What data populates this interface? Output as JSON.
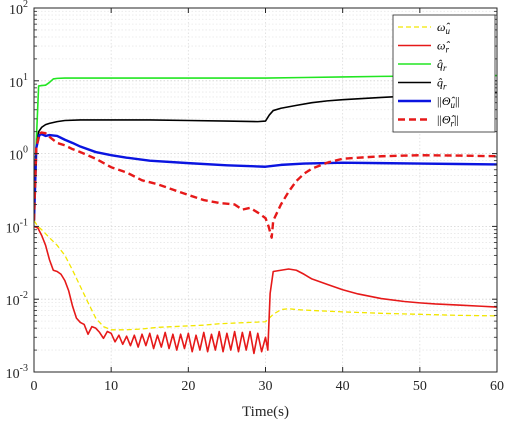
{
  "chart_data": {
    "type": "line",
    "xlabel": "Time(s)",
    "ylabel": "",
    "xlim": [
      0,
      60
    ],
    "ylim": [
      0.001,
      100
    ],
    "yscale": "log",
    "grid": true,
    "legend_placement": "top-right",
    "x_ticks": [
      0,
      10,
      20,
      30,
      40,
      50,
      60
    ],
    "x_tick_labels": [
      "0",
      "10",
      "20",
      "30",
      "40",
      "50",
      "60"
    ],
    "y_ticks": [
      0.001,
      0.01,
      0.1,
      1,
      10,
      100
    ],
    "y_tick_labels": [
      {
        "base": "10",
        "exp": "-3"
      },
      {
        "base": "10",
        "exp": "-2"
      },
      {
        "base": "10",
        "exp": "-1"
      },
      {
        "base": "10",
        "exp": "0"
      },
      {
        "base": "10",
        "exp": "1"
      },
      {
        "base": "10",
        "exp": "2"
      }
    ],
    "series": [
      {
        "name": "ω̂u",
        "legend_main": "ω̂",
        "legend_sub": "u",
        "color": "#f2e600",
        "dash": "dashed",
        "width": 1.3,
        "x": [
          0,
          0.5,
          1,
          2,
          3,
          4,
          5,
          6,
          7,
          8,
          9,
          10,
          12,
          14,
          16,
          18,
          20,
          22,
          24,
          26,
          28,
          30,
          31,
          32,
          33,
          34,
          36,
          40,
          45,
          50,
          55,
          60
        ],
        "y": [
          0.12,
          0.1,
          0.09,
          0.07,
          0.055,
          0.04,
          0.025,
          0.015,
          0.009,
          0.0055,
          0.0042,
          0.0038,
          0.0038,
          0.0039,
          0.0041,
          0.0042,
          0.0043,
          0.0044,
          0.0046,
          0.0047,
          0.0048,
          0.0049,
          0.0062,
          0.0072,
          0.0074,
          0.0072,
          0.007,
          0.0067,
          0.0064,
          0.0062,
          0.006,
          0.0059
        ]
      },
      {
        "name": "ω̂r",
        "legend_main": "ω̂",
        "legend_sub": "r",
        "color": "#e61919",
        "dash": "solid",
        "width": 1.6,
        "x": [
          0,
          0.5,
          1,
          1.5,
          2,
          2.5,
          3,
          3.5,
          4,
          4.5,
          5,
          5.5,
          6,
          6.5,
          7,
          7.5,
          8,
          8.5,
          9,
          9.5,
          10,
          10.5,
          11,
          11.5,
          12,
          12.5,
          13,
          13.5,
          14,
          14.5,
          15,
          15.5,
          16,
          16.5,
          17,
          17.5,
          18,
          18.5,
          19,
          19.5,
          20,
          20.5,
          21,
          21.5,
          22,
          22.5,
          23,
          23.5,
          24,
          24.5,
          25,
          25.5,
          26,
          26.5,
          27,
          27.5,
          28,
          28.5,
          29,
          29.5,
          30,
          30.3,
          30.6,
          31,
          32,
          33,
          34,
          35,
          36,
          38,
          40,
          42,
          45,
          48,
          50,
          52,
          55,
          58,
          60
        ],
        "y": [
          0.1,
          0.095,
          0.075,
          0.055,
          0.035,
          0.025,
          0.024,
          0.022,
          0.018,
          0.013,
          0.008,
          0.0055,
          0.0048,
          0.0045,
          0.0033,
          0.0042,
          0.004,
          0.0035,
          0.0029,
          0.0036,
          0.0034,
          0.0026,
          0.0032,
          0.0024,
          0.0031,
          0.0023,
          0.0032,
          0.0022,
          0.0033,
          0.0023,
          0.0034,
          0.0021,
          0.0032,
          0.0022,
          0.0035,
          0.0021,
          0.0033,
          0.002,
          0.0033,
          0.0021,
          0.0034,
          0.0019,
          0.0032,
          0.002,
          0.0035,
          0.0019,
          0.0033,
          0.002,
          0.0036,
          0.0019,
          0.0034,
          0.002,
          0.0036,
          0.0019,
          0.0035,
          0.002,
          0.0036,
          0.0018,
          0.0034,
          0.0019,
          0.003,
          0.002,
          0.012,
          0.024,
          0.025,
          0.026,
          0.025,
          0.022,
          0.019,
          0.016,
          0.0135,
          0.0118,
          0.0102,
          0.0093,
          0.0089,
          0.0086,
          0.0083,
          0.008,
          0.0078
        ]
      },
      {
        "name": "q̂r (green)",
        "legend_main": "q̂",
        "legend_sub": "r",
        "color": "#22e622",
        "dash": "solid",
        "width": 1.6,
        "x": [
          0,
          0.3,
          0.6,
          1,
          1.5,
          2,
          2.5,
          3,
          4,
          6,
          10,
          15,
          20,
          25,
          30,
          35,
          40,
          45,
          50,
          55,
          60
        ],
        "y": [
          0.12,
          1.5,
          8.5,
          8.6,
          8.7,
          9.5,
          10.6,
          10.8,
          10.9,
          10.9,
          10.9,
          10.9,
          10.9,
          10.9,
          10.9,
          11.1,
          11.3,
          11.5,
          11.6,
          11.7,
          11.8
        ]
      },
      {
        "name": "q̂r (black)",
        "legend_main": "q̂",
        "legend_sub": "r",
        "color": "#000000",
        "dash": "solid",
        "width": 1.6,
        "x": [
          0,
          0.3,
          0.6,
          1,
          1.5,
          2,
          3,
          4,
          6,
          10,
          15,
          20,
          25,
          29,
          30,
          30.5,
          31,
          32,
          34,
          36,
          38,
          40,
          45,
          50,
          55,
          60
        ],
        "y": [
          0.12,
          1.2,
          2.0,
          2.3,
          2.5,
          2.6,
          2.75,
          2.85,
          2.9,
          2.9,
          2.9,
          2.85,
          2.8,
          2.75,
          2.8,
          3.4,
          3.9,
          4.2,
          4.6,
          5.0,
          5.3,
          5.5,
          5.9,
          6.3,
          6.6,
          6.9
        ]
      },
      {
        "name": "||Θ̂u||",
        "legend_main": "Θ̂",
        "legend_sub": "u",
        "color": "#0a14e0",
        "dash": "solid",
        "width": 2.4,
        "x": [
          0,
          0.3,
          0.7,
          1,
          1.5,
          2,
          3,
          4,
          5,
          6,
          8,
          10,
          12,
          15,
          20,
          25,
          30,
          32,
          35,
          40,
          45,
          50,
          55,
          60
        ],
        "y": [
          0.12,
          1.2,
          1.8,
          1.85,
          1.75,
          1.8,
          1.75,
          1.55,
          1.4,
          1.25,
          1.05,
          0.95,
          0.88,
          0.8,
          0.74,
          0.69,
          0.66,
          0.7,
          0.73,
          0.75,
          0.74,
          0.73,
          0.72,
          0.71
        ]
      },
      {
        "name": "||Θ̂r||",
        "legend_main": "Θ̂",
        "legend_sub": "r",
        "color": "#e61919",
        "dash": "dashed",
        "width": 2.4,
        "x": [
          0,
          0.3,
          0.7,
          1,
          1.5,
          2,
          3,
          4,
          5,
          6,
          8,
          10,
          12,
          14,
          16,
          18,
          20,
          22,
          24,
          26,
          27,
          28,
          29,
          30,
          30.4,
          30.8,
          31,
          32,
          33,
          34,
          35,
          36,
          38,
          40,
          45,
          50,
          55,
          60
        ],
        "y": [
          0.12,
          1.2,
          1.9,
          1.95,
          1.9,
          1.7,
          1.4,
          1.3,
          1.15,
          1.05,
          0.85,
          0.65,
          0.55,
          0.43,
          0.38,
          0.32,
          0.27,
          0.23,
          0.21,
          0.2,
          0.17,
          0.18,
          0.155,
          0.13,
          0.1,
          0.07,
          0.12,
          0.2,
          0.3,
          0.42,
          0.53,
          0.62,
          0.75,
          0.85,
          0.92,
          0.95,
          0.94,
          0.92
        ]
      }
    ]
  }
}
